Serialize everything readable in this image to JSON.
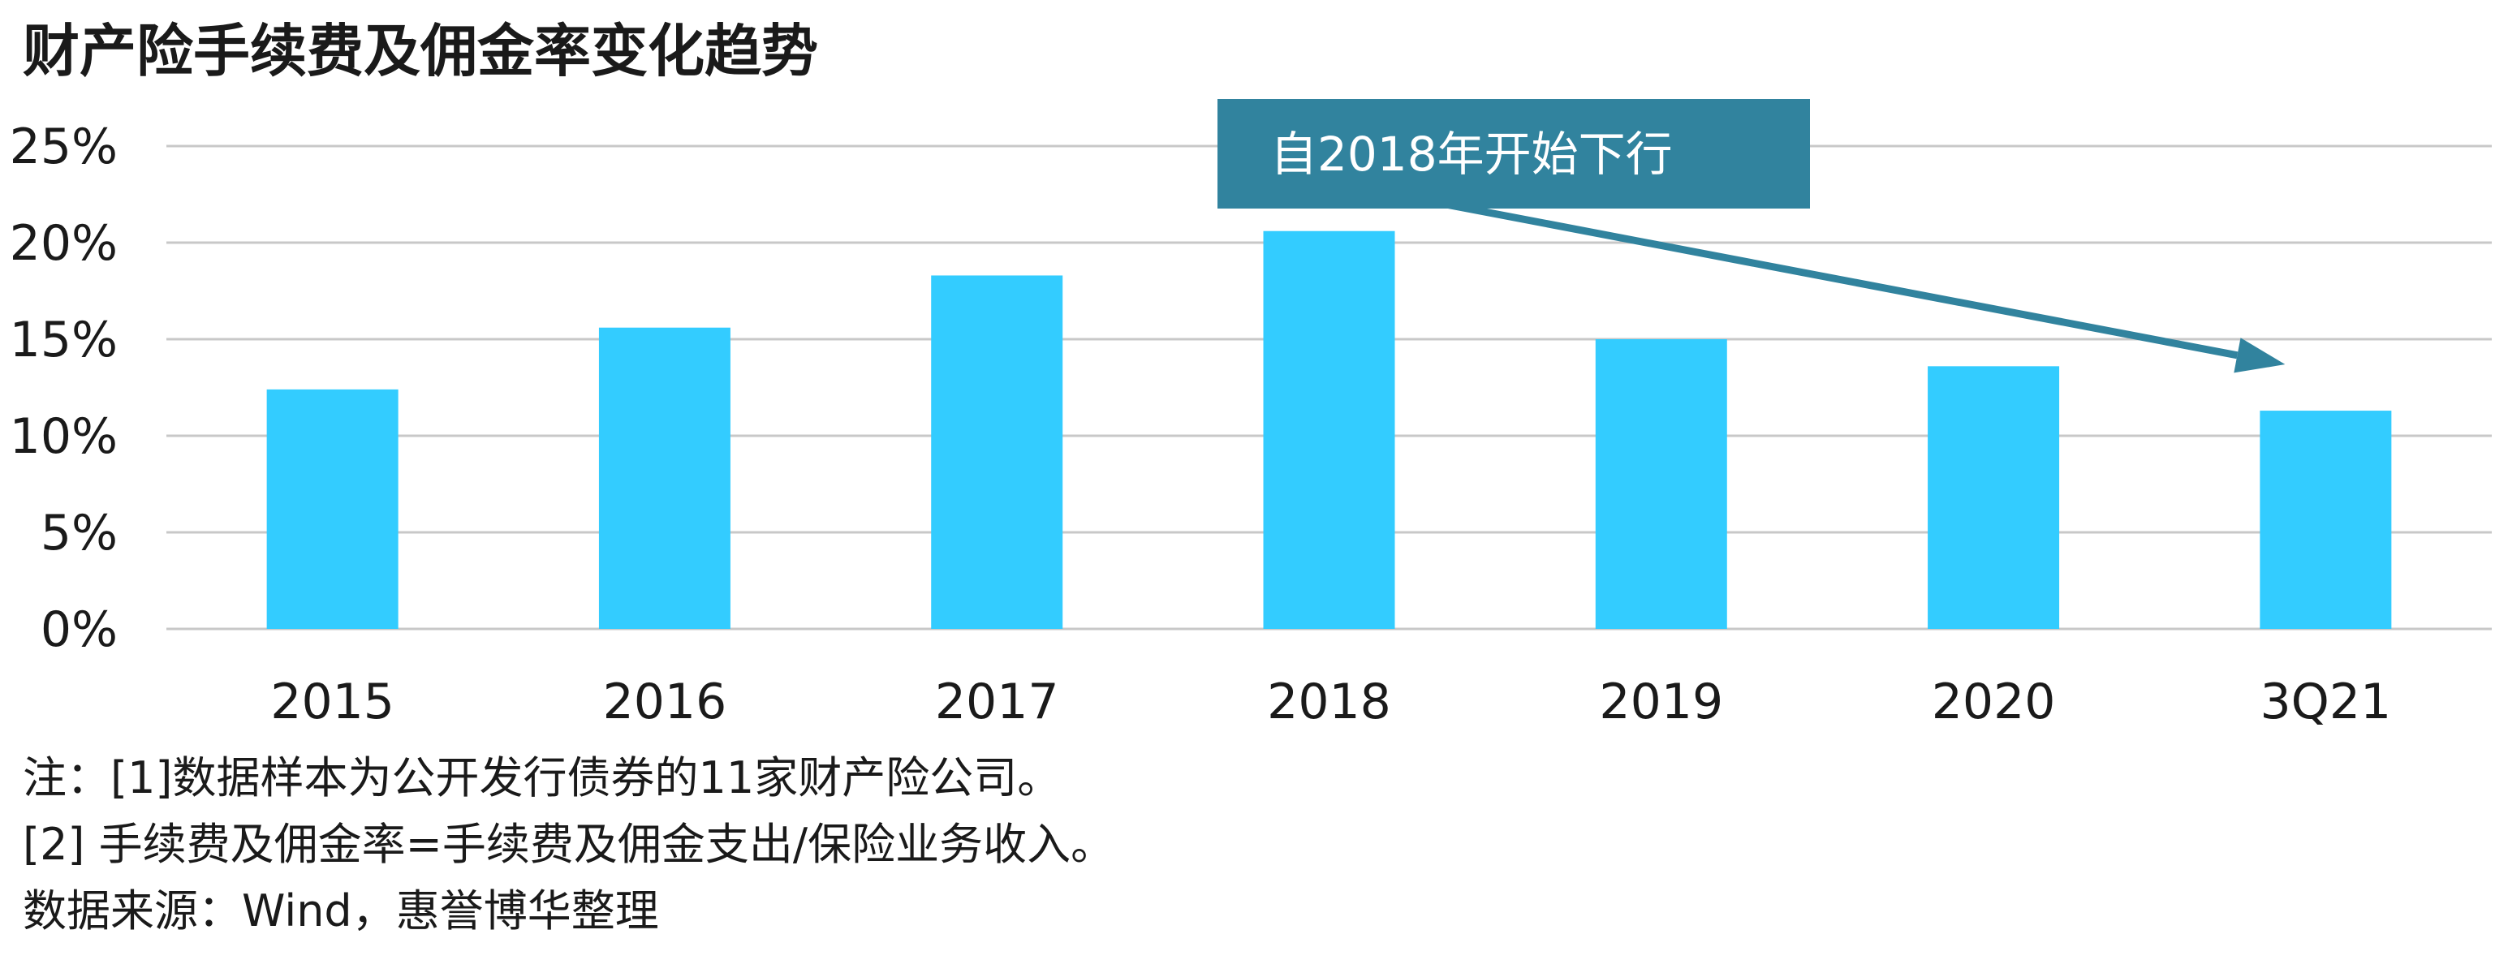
{
  "title": "财产险手续费及佣金率变化趋势",
  "callout": {
    "text": "自2018年开始下行"
  },
  "notes": [
    "注：[1]数据样本为公开发行债券的11家财产险公司。",
    "[2] 手续费及佣金率=手续费及佣金支出/保险业务收入。",
    "数据来源：Wind，惠誉博华整理"
  ],
  "colors": {
    "bar": "#33CCFF",
    "grid": "#C8C8C8",
    "callout_bg": "#31839E",
    "arrow": "#31839E",
    "text": "#1a1a1a"
  },
  "chart_data": {
    "type": "bar",
    "title": "财产险手续费及佣金率变化趋势",
    "categories": [
      "2015",
      "2016",
      "2017",
      "2018",
      "2019",
      "2020",
      "3Q21"
    ],
    "values": [
      12.4,
      15.6,
      18.3,
      20.6,
      15.0,
      13.6,
      11.3
    ],
    "unit": "%",
    "ylim": [
      0,
      25
    ],
    "yticks": [
      "0%",
      "5%",
      "10%",
      "15%",
      "20%",
      "25%"
    ],
    "ytick_values": [
      0,
      5,
      10,
      15,
      20,
      25
    ],
    "grid": true,
    "legend": "none",
    "annotations": [
      {
        "text": "自2018年开始下行",
        "arrow_from": "2018",
        "arrow_to": "3Q21"
      }
    ]
  }
}
